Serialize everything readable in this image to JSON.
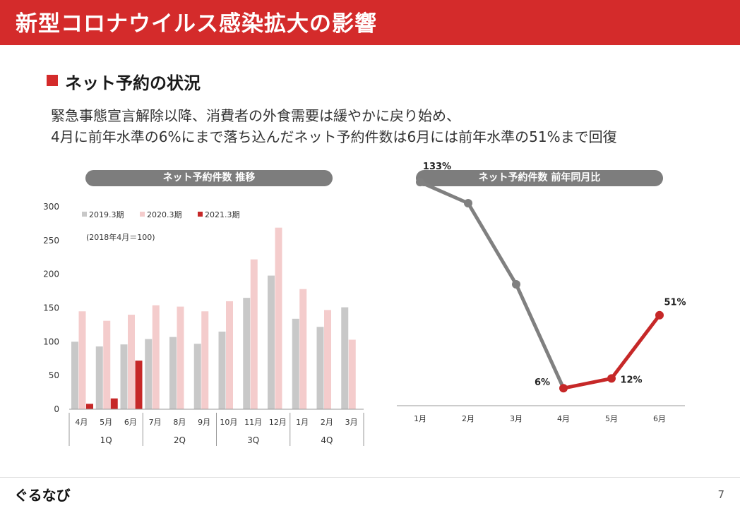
{
  "header": {
    "title": "新型コロナウイルス感染拡大の影響"
  },
  "section": {
    "title": "ネット予約の状況"
  },
  "body": {
    "line1": "緊急事態宣言解除以降、消費者の外食需要は緩やかに戻り始め、",
    "line2": "4月に前年水準の6%にまで落ち込んだネット予約件数は6月には前年水準の51%まで回復"
  },
  "footer": {
    "logo": "ぐるなび",
    "page": "7"
  },
  "colors": {
    "accent": "#d42b2b",
    "series_2019": "#c8c8c8",
    "series_2020": "#f4cccc",
    "series_2021": "#c62828",
    "line_gray": "#808080"
  },
  "chart_data": [
    {
      "type": "bar",
      "title": "ネット予約件数 推移",
      "note": "(2018年4月＝100)",
      "categories": [
        "4月",
        "5月",
        "6月",
        "7月",
        "8月",
        "9月",
        "10月",
        "11月",
        "12月",
        "1月",
        "2月",
        "3月"
      ],
      "groups": [
        {
          "label": "1Q",
          "size": 3
        },
        {
          "label": "2Q",
          "size": 3
        },
        {
          "label": "3Q",
          "size": 3
        },
        {
          "label": "4Q",
          "size": 3
        }
      ],
      "series": [
        {
          "name": "2019.3期",
          "values": [
            100,
            93,
            96,
            104,
            107,
            97,
            115,
            165,
            198,
            134,
            122,
            151
          ]
        },
        {
          "name": "2020.3期",
          "values": [
            145,
            131,
            140,
            154,
            152,
            145,
            160,
            222,
            269,
            178,
            147,
            103
          ]
        },
        {
          "name": "2021.3期",
          "values": [
            8,
            16,
            72,
            null,
            null,
            null,
            null,
            null,
            null,
            null,
            null,
            null
          ]
        }
      ],
      "ylim": [
        0,
        300
      ],
      "yticks": [
        "0",
        "50",
        "100",
        "150",
        "200",
        "250",
        "300"
      ],
      "legend": "top-left"
    },
    {
      "type": "line",
      "title": "ネット予約件数 前年同月比",
      "categories": [
        "1月",
        "2月",
        "3月",
        "4月",
        "5月",
        "6月"
      ],
      "values": [
        133,
        120,
        70,
        6,
        12,
        51
      ],
      "data_labels": [
        "133%",
        null,
        null,
        "6%",
        "12%",
        "51%"
      ],
      "highlight_from_index": 3
    }
  ]
}
